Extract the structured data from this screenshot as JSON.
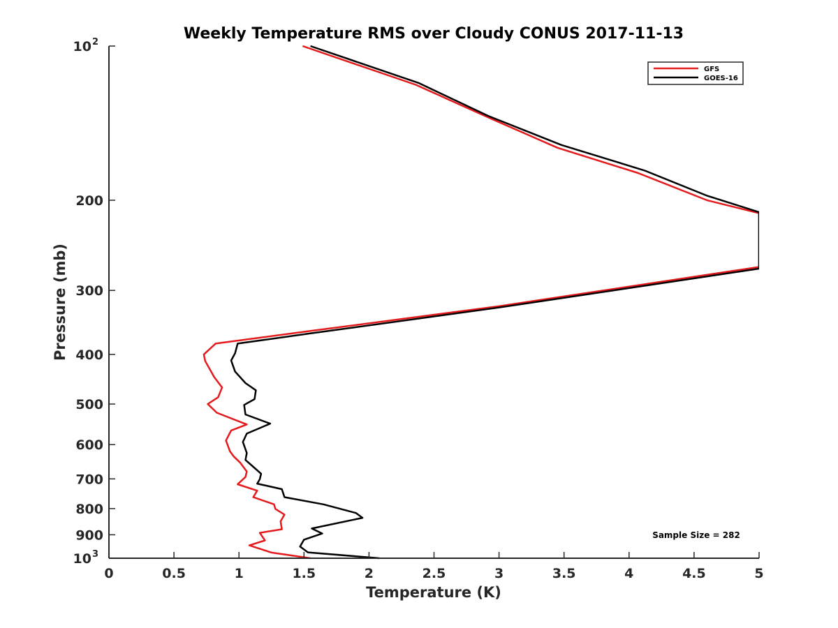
{
  "chart_data": {
    "type": "line",
    "title": "Weekly Temperature RMS over Cloudy CONUS 2017-11-13",
    "xlabel": "Temperature (K)",
    "ylabel": "Pressure (mb)",
    "xlim": [
      0,
      5
    ],
    "ylim": [
      100,
      1000
    ],
    "yscale": "log",
    "y_reversed": true,
    "grid": false,
    "legend_position": "top-right",
    "x_ticks": [
      {
        "value": 0,
        "label": "0"
      },
      {
        "value": 0.5,
        "label": "0.5"
      },
      {
        "value": 1,
        "label": "1"
      },
      {
        "value": 1.5,
        "label": "1.5"
      },
      {
        "value": 2,
        "label": "2"
      },
      {
        "value": 2.5,
        "label": "2.5"
      },
      {
        "value": 3,
        "label": "3"
      },
      {
        "value": 3.5,
        "label": "3.5"
      },
      {
        "value": 4,
        "label": "4"
      },
      {
        "value": 4.5,
        "label": "4.5"
      },
      {
        "value": 5,
        "label": "5"
      }
    ],
    "y_ticks": [
      {
        "value": 100,
        "base": "10",
        "exp": "2"
      },
      {
        "value": 200,
        "base": "200",
        "exp": ""
      },
      {
        "value": 300,
        "base": "300",
        "exp": ""
      },
      {
        "value": 400,
        "base": "400",
        "exp": ""
      },
      {
        "value": 500,
        "base": "500",
        "exp": ""
      },
      {
        "value": 600,
        "base": "600",
        "exp": ""
      },
      {
        "value": 700,
        "base": "700",
        "exp": ""
      },
      {
        "value": 800,
        "base": "800",
        "exp": ""
      },
      {
        "value": 900,
        "base": "900",
        "exp": ""
      },
      {
        "value": 1000,
        "base": "10",
        "exp": "3"
      }
    ],
    "annotation": "Sample Size = 282",
    "series": [
      {
        "name": "GFS",
        "color": "#e41a1c",
        "points": [
          [
            1.49,
            100
          ],
          [
            2.36,
            119
          ],
          [
            2.95,
            139
          ],
          [
            3.45,
            158
          ],
          [
            4.07,
            177
          ],
          [
            4.6,
            200
          ],
          [
            5.0,
            212
          ],
          [
            5.0,
            270
          ],
          [
            3.0,
            322
          ],
          [
            1.55,
            360
          ],
          [
            0.82,
            381
          ],
          [
            0.73,
            400
          ],
          [
            0.74,
            412
          ],
          [
            0.81,
            443
          ],
          [
            0.87,
            464
          ],
          [
            0.84,
            485
          ],
          [
            0.76,
            500
          ],
          [
            0.83,
            520
          ],
          [
            1.06,
            548
          ],
          [
            0.94,
            563
          ],
          [
            0.9,
            589
          ],
          [
            0.93,
            618
          ],
          [
            0.96,
            633
          ],
          [
            1.01,
            651
          ],
          [
            1.06,
            677
          ],
          [
            1.05,
            694
          ],
          [
            0.99,
            717
          ],
          [
            1.14,
            738
          ],
          [
            1.11,
            760
          ],
          [
            1.27,
            785
          ],
          [
            1.28,
            801
          ],
          [
            1.35,
            822
          ],
          [
            1.32,
            847
          ],
          [
            1.33,
            878
          ],
          [
            1.16,
            892
          ],
          [
            1.2,
            923
          ],
          [
            1.08,
            944
          ],
          [
            1.25,
            975
          ],
          [
            1.55,
            1000
          ]
        ]
      },
      {
        "name": "GOES-16",
        "color": "#000000",
        "points": [
          [
            1.55,
            100
          ],
          [
            2.38,
            118
          ],
          [
            2.92,
            137
          ],
          [
            3.48,
            156
          ],
          [
            4.12,
            175
          ],
          [
            4.6,
            196
          ],
          [
            5.0,
            211
          ],
          [
            5.0,
            272
          ],
          [
            3.0,
            324
          ],
          [
            1.55,
            364
          ],
          [
            0.99,
            381
          ],
          [
            0.97,
            398
          ],
          [
            0.94,
            411
          ],
          [
            0.97,
            432
          ],
          [
            1.05,
            455
          ],
          [
            1.13,
            470
          ],
          [
            1.12,
            489
          ],
          [
            1.04,
            502
          ],
          [
            1.05,
            524
          ],
          [
            1.24,
            546
          ],
          [
            1.06,
            571
          ],
          [
            1.03,
            593
          ],
          [
            1.06,
            623
          ],
          [
            1.05,
            643
          ],
          [
            1.11,
            663
          ],
          [
            1.17,
            684
          ],
          [
            1.16,
            701
          ],
          [
            1.14,
            715
          ],
          [
            1.33,
            733
          ],
          [
            1.35,
            760
          ],
          [
            1.65,
            785
          ],
          [
            1.9,
            816
          ],
          [
            1.95,
            834
          ],
          [
            1.56,
            875
          ],
          [
            1.64,
            895
          ],
          [
            1.5,
            920
          ],
          [
            1.47,
            949
          ],
          [
            1.53,
            974
          ],
          [
            2.08,
            1000
          ]
        ]
      }
    ]
  }
}
